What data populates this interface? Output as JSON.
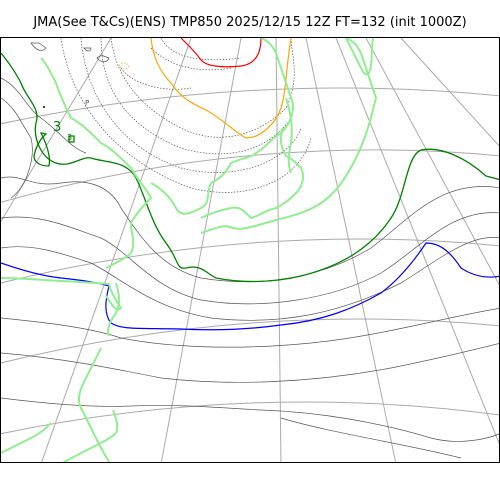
{
  "title": "JMA(See T&Cs)(ENS) TMP850 2025/12/15 12Z FT=132 (init 1000Z)",
  "map": {
    "product": "TMP850",
    "colors": {
      "coastline": "#90ee90",
      "grid": "#aaaaaa",
      "contour": "#555555",
      "contour_dotted": "#555555",
      "zero_isotherm": "#008000",
      "blue_isotherm": "#0000ff",
      "orange_isotherm": "#ffa500",
      "red_isotherm": "#ff0000",
      "border": "#000000"
    },
    "annotations": [
      {
        "text": "P"
      },
      {
        "text": "3"
      },
      {
        "text": "3"
      }
    ]
  }
}
